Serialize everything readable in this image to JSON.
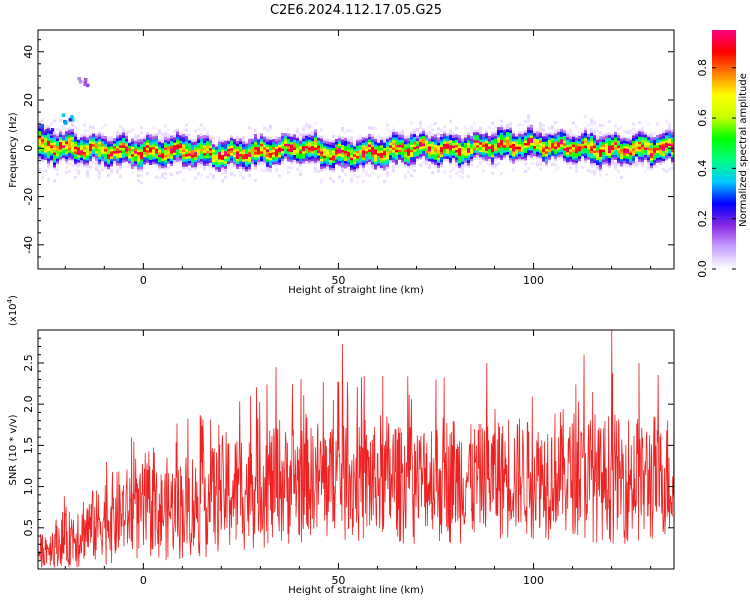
{
  "title": "C2E6.2024.112.17.05.G25",
  "chart_data": [
    {
      "type": "heatmap",
      "name": "spectrogram",
      "xlabel": "Height of straight line (km)",
      "ylabel": "Frequency (Hz)",
      "xlim": [
        -27,
        136
      ],
      "ylim": [
        -50,
        49
      ],
      "xticks": [
        0,
        50,
        100
      ],
      "yticks": [
        40,
        20,
        0,
        -20,
        -40
      ],
      "colorbar": {
        "label": "Normalized spectral amplitude",
        "range": [
          0,
          0.95
        ],
        "ticks": [
          0.0,
          0.2,
          0.4,
          0.6,
          0.8
        ],
        "colormap": [
          "#ffffff",
          "#c8a0ff",
          "#8a2be2",
          "#0000ff",
          "#00c8ff",
          "#00ff80",
          "#00ff00",
          "#c8ff00",
          "#ffff00",
          "#ff8000",
          "#ff0000",
          "#ff0080"
        ]
      },
      "signal_track": {
        "x": [
          -27,
          -20,
          -10,
          0,
          10,
          20,
          30,
          40,
          50,
          60,
          70,
          80,
          90,
          100,
          110,
          120,
          136
        ],
        "center_hz": [
          2,
          1,
          0,
          -1,
          0,
          -2,
          -1,
          1,
          -2,
          -1,
          1,
          0,
          2,
          2,
          1,
          0,
          1
        ],
        "halfwidth_hz": [
          5,
          4,
          4,
          4,
          4,
          4,
          4,
          4,
          4,
          4,
          4,
          4,
          4,
          4,
          4,
          4,
          4
        ]
      },
      "blobs": [
        {
          "x": -20,
          "y": 13,
          "amp": 0.35
        },
        {
          "x": -16,
          "y": 28,
          "amp": 0.15
        },
        {
          "x": -25,
          "y": 8,
          "amp": 0.3
        }
      ]
    },
    {
      "type": "line",
      "name": "snr",
      "xlabel": "Height of straight line (km)",
      "ylabel": "SNR (10 * v/v)",
      "y_multiplier_label": "(x10",
      "y_multiplier_exp": "4",
      "y_multiplier_close": ")",
      "xlim": [
        -27,
        136
      ],
      "ylim": [
        0,
        2.9
      ],
      "xticks": [
        0,
        50,
        100
      ],
      "yticks": [
        0.5,
        1.0,
        1.5,
        2.0,
        2.5
      ],
      "color": "#ee2222",
      "envelope": {
        "x": [
          -27,
          -20,
          -10,
          0,
          10,
          20,
          30,
          40,
          50,
          60,
          70,
          80,
          90,
          100,
          110,
          120,
          136
        ],
        "mean": [
          0.2,
          0.35,
          0.6,
          0.7,
          0.75,
          0.9,
          1.05,
          1.1,
          1.1,
          1.1,
          1.1,
          1.1,
          1.15,
          1.15,
          1.15,
          1.1,
          1.1
        ],
        "spread": [
          0.2,
          0.4,
          0.55,
          0.6,
          0.65,
          0.75,
          0.8,
          0.8,
          0.8,
          0.8,
          0.8,
          0.8,
          0.8,
          0.8,
          0.8,
          0.8,
          0.8
        ]
      },
      "peaks": [
        {
          "x": -3,
          "y": 1.6
        },
        {
          "x": 34,
          "y": 2.45
        },
        {
          "x": 51,
          "y": 2.73
        },
        {
          "x": 75,
          "y": 2.3
        },
        {
          "x": 88,
          "y": 2.5
        },
        {
          "x": 113,
          "y": 2.6
        },
        {
          "x": 120,
          "y": 2.9
        },
        {
          "x": 127,
          "y": 2.5
        }
      ]
    }
  ]
}
